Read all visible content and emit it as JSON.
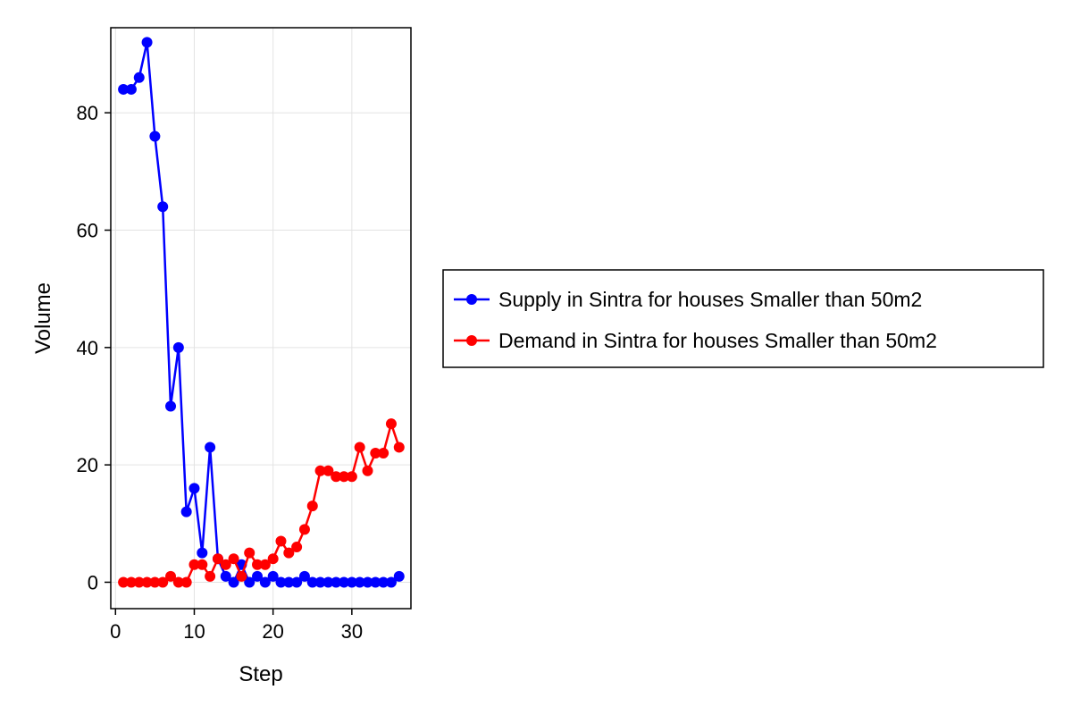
{
  "chart_data": {
    "type": "line",
    "xlabel": "Step",
    "ylabel": "Volume",
    "xlim": [
      -0.6,
      37.5
    ],
    "ylim": [
      -4.5,
      94.5
    ],
    "x_ticks": [
      0,
      10,
      20,
      30
    ],
    "y_ticks": [
      0,
      20,
      40,
      60,
      80
    ],
    "x_tick_labels": [
      "0",
      "10",
      "20",
      "30"
    ],
    "y_tick_labels": [
      "0",
      "20",
      "40",
      "60",
      "80"
    ],
    "grid": true,
    "legend_position": "right",
    "x": [
      1,
      2,
      3,
      4,
      5,
      6,
      7,
      8,
      9,
      10,
      11,
      12,
      13,
      14,
      15,
      16,
      17,
      18,
      19,
      20,
      21,
      22,
      23,
      24,
      25,
      26,
      27,
      28,
      29,
      30,
      31,
      32,
      33,
      34,
      35,
      36
    ],
    "series": [
      {
        "name": "Supply in Sintra for houses Smaller than 50m2",
        "color": "#0000ff",
        "values": [
          84,
          84,
          86,
          92,
          76,
          64,
          30,
          40,
          12,
          16,
          5,
          23,
          4,
          1,
          0,
          3,
          0,
          1,
          0,
          1,
          0,
          0,
          0,
          1,
          0,
          0,
          0,
          0,
          0,
          0,
          0,
          0,
          0,
          0,
          0,
          1
        ]
      },
      {
        "name": "Demand in Sintra for houses Smaller than 50m2",
        "color": "#ff0000",
        "values": [
          0,
          0,
          0,
          0,
          0,
          0,
          1,
          0,
          0,
          3,
          3,
          1,
          4,
          3,
          4,
          1,
          5,
          3,
          3,
          4,
          7,
          5,
          6,
          9,
          13,
          19,
          19,
          18,
          18,
          18,
          23,
          19,
          22,
          22,
          27,
          23
        ]
      }
    ]
  }
}
